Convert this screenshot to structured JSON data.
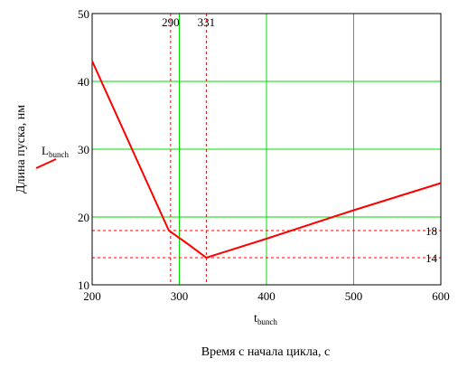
{
  "chart_data": {
    "type": "line",
    "x_axis": {
      "range": [
        200,
        600
      ],
      "ticks": [
        200,
        300,
        400,
        500,
        600
      ],
      "tick_labels": [
        "200",
        "300",
        "400",
        "500",
        "600"
      ],
      "label_main": "t",
      "label_sub": "bunch",
      "caption": "Время с начала цикла, с"
    },
    "y_axis": {
      "range": [
        10,
        50
      ],
      "ticks": [
        10,
        20,
        30,
        40,
        50
      ],
      "tick_labels": [
        "10",
        "20",
        "30",
        "40",
        "50"
      ],
      "label": "Длина пуска, нм"
    },
    "grid": true,
    "grid_color": "#00dd00",
    "series": [
      {
        "name_main": "L",
        "name_sub": "bunch",
        "color": "#ff0000",
        "points": [
          [
            200,
            43
          ],
          [
            288,
            18
          ],
          [
            310,
            16
          ],
          [
            331,
            14
          ],
          [
            400,
            16.8
          ],
          [
            500,
            21
          ],
          [
            600,
            25
          ]
        ]
      }
    ],
    "markers": {
      "x": [
        {
          "value": 290,
          "label": "290"
        },
        {
          "value": 331,
          "label": "331"
        }
      ],
      "y": [
        {
          "value": 18,
          "label": "18"
        },
        {
          "value": 14,
          "label": "14"
        }
      ],
      "color": "#ff0000"
    },
    "legend": {
      "placement": "left"
    }
  }
}
